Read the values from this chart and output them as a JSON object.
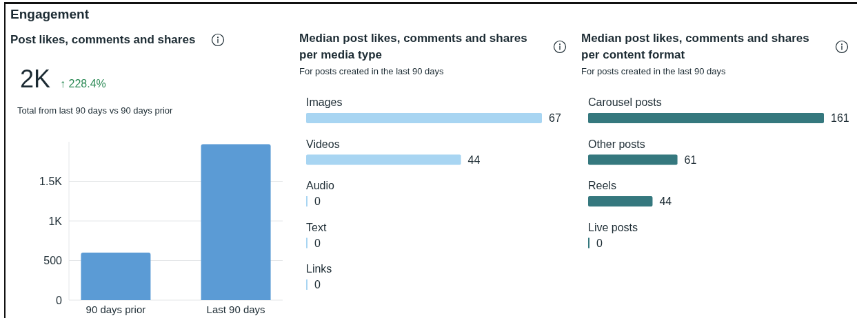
{
  "chart_data": [
    {
      "type": "bar",
      "title": "Post likes, comments and shares",
      "annotations": [
        "Engagement",
        "2K",
        "↑ 228.4%",
        "Total from last 90 days vs 90 days prior"
      ],
      "categories": [
        "90 days prior",
        "Last 90 days"
      ],
      "values": [
        600,
        1970
      ],
      "color": "#5b9bd5",
      "ylim": [
        0,
        2000
      ],
      "yticks": [
        0,
        500,
        {
          "value": 1000,
          "label": "1K"
        },
        {
          "value": 1500,
          "label": "1.5K"
        }
      ],
      "grid": "y"
    },
    {
      "type": "bar",
      "orientation": "horizontal",
      "title": "Median post likes, comments and shares per media type",
      "subtitle": "For posts created in the last 90 days",
      "categories": [
        "Images",
        "Videos",
        "Audio",
        "Text",
        "Links"
      ],
      "values": [
        67,
        44,
        0,
        0,
        0
      ],
      "color": "#a8d5f2",
      "data_labels": true
    },
    {
      "type": "bar",
      "orientation": "horizontal",
      "title": "Median post likes, comments and shares per content format",
      "subtitle": "For posts created in the last 90 days",
      "categories": [
        "Carousel posts",
        "Other posts",
        "Reels",
        "Live posts"
      ],
      "values": [
        161,
        61,
        44,
        0
      ],
      "color": "#35787e",
      "data_labels": true
    }
  ]
}
